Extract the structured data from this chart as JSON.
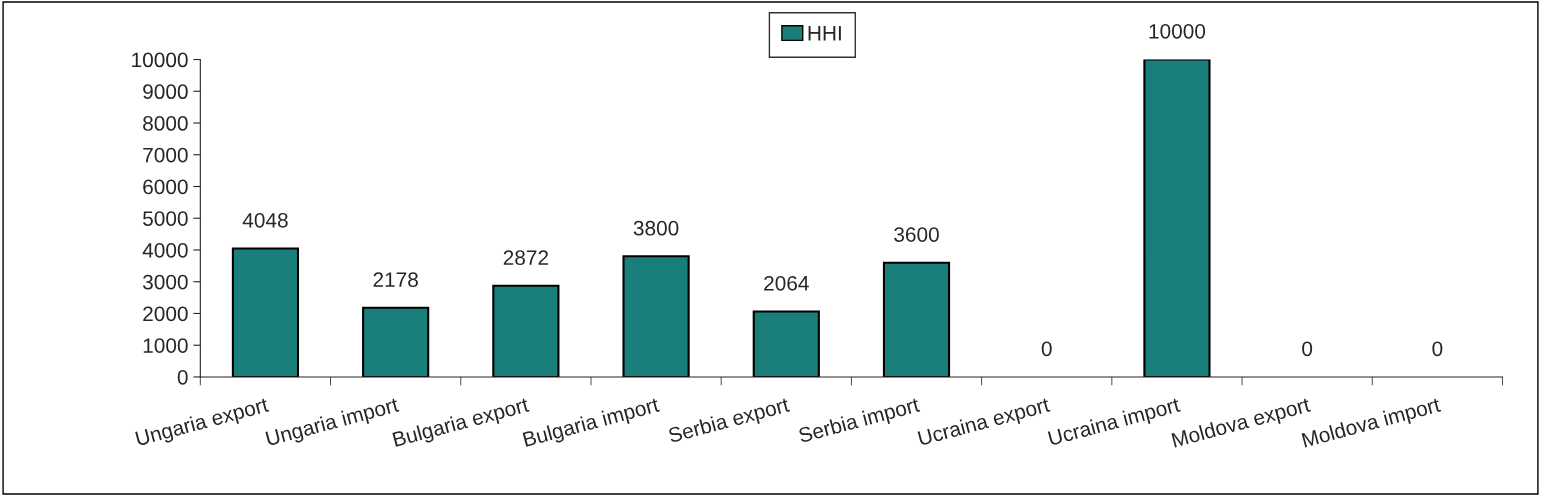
{
  "chart_data": {
    "type": "bar",
    "categories": [
      "Ungaria export",
      "Ungaria import",
      "Bulgaria export",
      "Bulgaria import",
      "Serbia export",
      "Serbia import",
      "Ucraina export",
      "Ucraina import",
      "Moldova export",
      "Moldova import"
    ],
    "series": [
      {
        "name": "HHI",
        "color": "#1a7f7a",
        "values": [
          4048,
          2178,
          2872,
          3800,
          2064,
          3600,
          0,
          10000,
          0,
          0
        ]
      }
    ],
    "ylim": [
      0,
      10000
    ],
    "yticks": [
      0,
      1000,
      2000,
      3000,
      4000,
      5000,
      6000,
      7000,
      8000,
      9000,
      10000
    ],
    "data_labels": true,
    "legend": "top",
    "grid": false
  }
}
